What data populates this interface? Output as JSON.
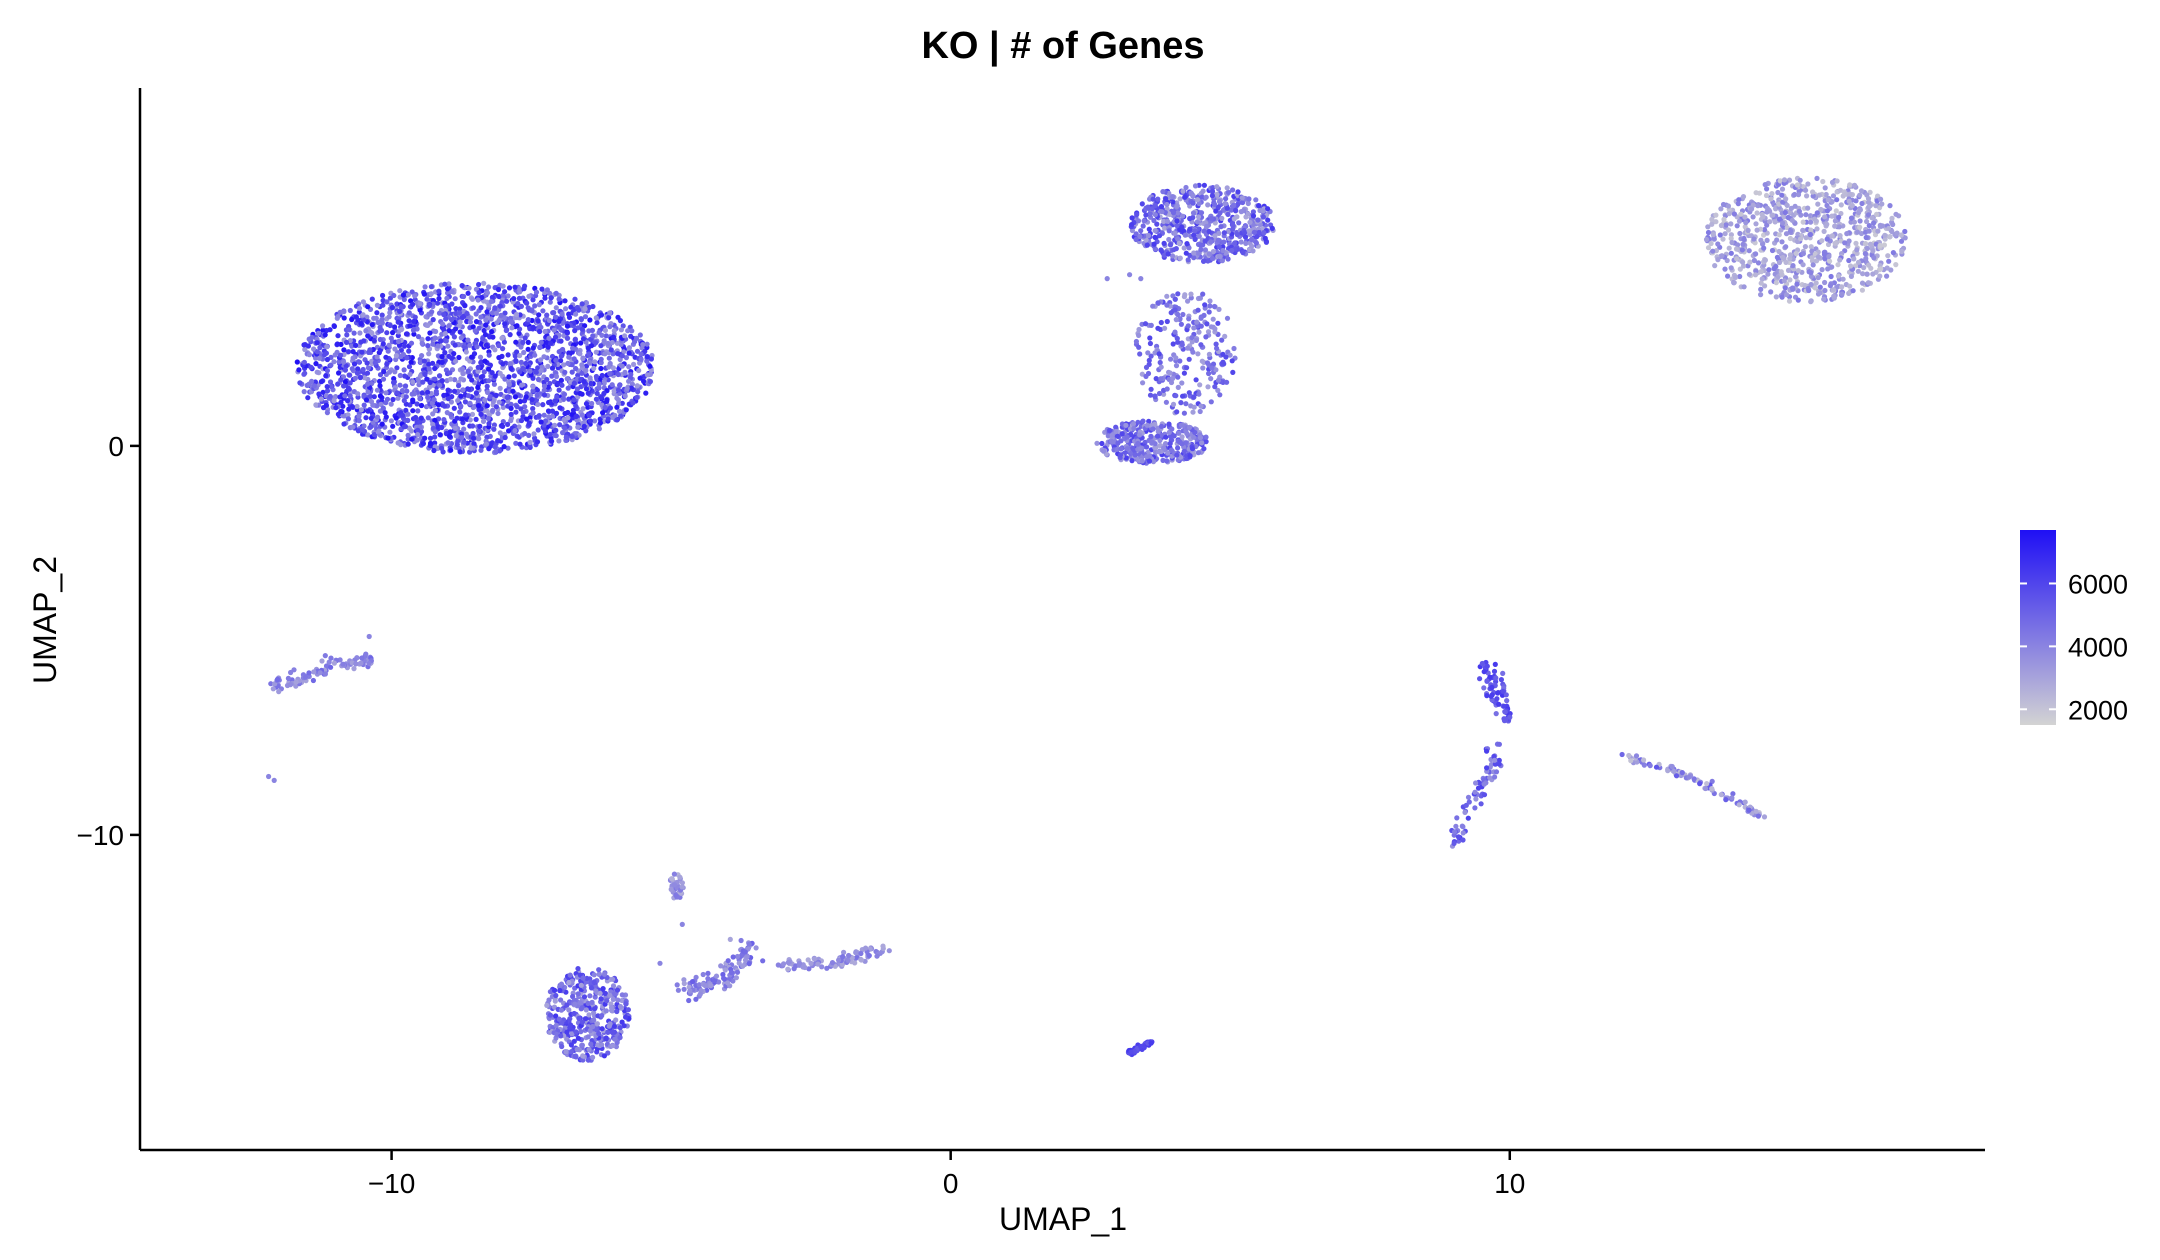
{
  "chart_data": {
    "type": "scatter",
    "title": "KO | # of Genes",
    "xlabel": "UMAP_1",
    "ylabel": "UMAP_2",
    "xlim": [
      -14.5,
      18.5
    ],
    "ylim": [
      -18.1,
      9.2
    ],
    "x_ticks": [
      -10,
      0,
      10
    ],
    "y_ticks": [
      0,
      -10
    ],
    "x_tick_labels": [
      "−10",
      "0",
      "10"
    ],
    "y_tick_labels": [
      "0",
      "−10"
    ],
    "grid": false,
    "color_scale": {
      "low_color": "#d3d3d3",
      "high_color": "#1f0ff5",
      "min": 1500,
      "max": 7700,
      "ticks": [
        6000,
        4000,
        2000
      ],
      "tick_labels": [
        "6000",
        "4000",
        "2000"
      ],
      "placement": "right"
    },
    "clusters": [
      {
        "cx": -8.5,
        "cy": 2.0,
        "rx": 3.2,
        "ry": 2.2,
        "n": 2400,
        "value_range": [
          3200,
          7600
        ]
      },
      {
        "cx": 4.5,
        "cy": 5.7,
        "rx": 1.3,
        "ry": 1.0,
        "n": 600,
        "value_range": [
          2800,
          6400
        ]
      },
      {
        "cx": 4.2,
        "cy": 2.4,
        "rx": 0.9,
        "ry": 1.6,
        "n": 250,
        "value_range": [
          3000,
          6000
        ]
      },
      {
        "cx": 3.6,
        "cy": 0.1,
        "rx": 1.0,
        "ry": 0.55,
        "n": 350,
        "value_range": [
          3000,
          6200
        ]
      },
      {
        "cx": 15.3,
        "cy": 5.3,
        "rx": 1.8,
        "ry": 1.6,
        "n": 800,
        "value_range": [
          1800,
          4400
        ]
      },
      {
        "cx": -6.5,
        "cy": -14.6,
        "rx": 0.75,
        "ry": 1.2,
        "n": 420,
        "value_range": [
          3000,
          6500
        ]
      },
      {
        "cx": -4.9,
        "cy": -11.3,
        "rx": 0.12,
        "ry": 0.35,
        "n": 40,
        "value_range": [
          2500,
          4500
        ]
      }
    ],
    "strands": [
      {
        "points": [
          [
            -12.2,
            -6.2
          ],
          [
            -11.5,
            -5.9
          ],
          [
            -11.0,
            -5.6
          ],
          [
            -10.4,
            -5.5
          ]
        ],
        "n": 90,
        "spread": 0.09,
        "value_range": [
          3000,
          5000
        ]
      },
      {
        "points": [
          [
            -4.8,
            -14.0
          ],
          [
            -4.2,
            -13.8
          ],
          [
            -3.8,
            -13.3
          ],
          [
            -3.6,
            -12.8
          ]
        ],
        "n": 110,
        "spread": 0.12,
        "value_range": [
          3000,
          5200
        ]
      },
      {
        "points": [
          [
            -3.0,
            -13.4
          ],
          [
            -2.2,
            -13.3
          ],
          [
            -1.6,
            -13.1
          ],
          [
            -1.2,
            -12.9
          ]
        ],
        "n": 90,
        "spread": 0.08,
        "value_range": [
          2800,
          4600
        ]
      },
      {
        "points": [
          [
            3.2,
            -15.6
          ],
          [
            3.6,
            -15.3
          ]
        ],
        "n": 40,
        "spread": 0.04,
        "value_range": [
          5200,
          6500
        ]
      },
      {
        "points": [
          [
            9.6,
            -5.6
          ],
          [
            9.8,
            -6.4
          ],
          [
            10.0,
            -7.1
          ]
        ],
        "n": 80,
        "spread": 0.09,
        "value_range": [
          4500,
          6500
        ]
      },
      {
        "points": [
          [
            9.0,
            -10.3
          ],
          [
            9.2,
            -9.4
          ],
          [
            9.6,
            -8.5
          ],
          [
            9.8,
            -7.7
          ]
        ],
        "n": 70,
        "spread": 0.08,
        "value_range": [
          3500,
          6200
        ]
      },
      {
        "points": [
          [
            12.0,
            -7.9
          ],
          [
            13.2,
            -8.5
          ],
          [
            14.5,
            -9.5
          ]
        ],
        "n": 90,
        "spread": 0.05,
        "value_range": [
          2000,
          5500
        ]
      }
    ],
    "outliers": [
      [
        -12.2,
        -8.5
      ],
      [
        -12.1,
        -8.6
      ],
      [
        -10.4,
        -4.9
      ],
      [
        -5.2,
        -13.3
      ],
      [
        -4.8,
        -12.3
      ],
      [
        2.8,
        4.3
      ],
      [
        3.2,
        4.4
      ],
      [
        3.4,
        4.3
      ]
    ]
  }
}
